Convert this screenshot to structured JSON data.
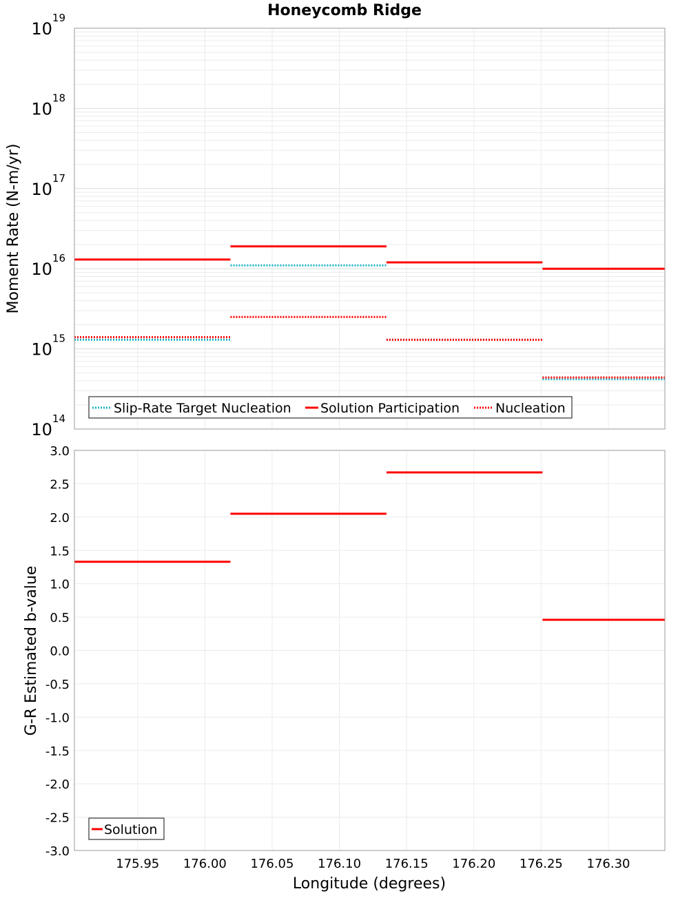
{
  "chart_data": [
    {
      "type": "line",
      "title": "Honeycomb Ridge",
      "ylabel": "Moment Rate (N-m/yr)",
      "xlabel": "",
      "yscale": "log",
      "ylim": [
        100000000000000.0,
        1e+19
      ],
      "xlim": [
        175.903,
        176.342
      ],
      "xtick_labels": [],
      "ytick_labels": [
        {
          "base": "10",
          "exp": "14",
          "value": 100000000000000.0
        },
        {
          "base": "10",
          "exp": "15",
          "value": 1000000000000000.0
        },
        {
          "base": "10",
          "exp": "16",
          "value": 1e+16
        },
        {
          "base": "10",
          "exp": "17",
          "value": 1e+17
        },
        {
          "base": "10",
          "exp": "18",
          "value": 1e+18
        },
        {
          "base": "10",
          "exp": "19",
          "value": 1e+19
        }
      ],
      "grid": true,
      "legend": {
        "placement": "bottom-left"
      },
      "series": [
        {
          "name": "Slip-Rate Target Nucleation",
          "color": "#1fb3c4",
          "style": "dotted",
          "segments": [
            {
              "x0": 175.903,
              "x1": 176.019,
              "y": 1300000000000000.0
            },
            {
              "x0": 176.019,
              "x1": 176.135,
              "y": 1.1e+16
            },
            {
              "x0": 176.135,
              "x1": 176.251,
              "y": 1300000000000000.0
            },
            {
              "x0": 176.251,
              "x1": 176.342,
              "y": 420000000000000.0
            }
          ]
        },
        {
          "name": "Solution Participation",
          "color": "#ff0000",
          "style": "solid",
          "segments": [
            {
              "x0": 175.903,
              "x1": 176.019,
              "y": 1.3e+16
            },
            {
              "x0": 176.019,
              "x1": 176.135,
              "y": 1.9e+16
            },
            {
              "x0": 176.135,
              "x1": 176.251,
              "y": 1.2e+16
            },
            {
              "x0": 176.251,
              "x1": 176.342,
              "y": 1e+16
            }
          ]
        },
        {
          "name": "Nucleation",
          "color": "#ff0000",
          "style": "dotted",
          "segments": [
            {
              "x0": 175.903,
              "x1": 176.019,
              "y": 1400000000000000.0
            },
            {
              "x0": 176.019,
              "x1": 176.135,
              "y": 2500000000000000.0
            },
            {
              "x0": 176.135,
              "x1": 176.251,
              "y": 1300000000000000.0
            },
            {
              "x0": 176.251,
              "x1": 176.342,
              "y": 440000000000000.0
            }
          ]
        }
      ]
    },
    {
      "type": "line",
      "title": "",
      "ylabel": "G-R Estimated b-value",
      "xlabel": "Longitude (degrees)",
      "yscale": "linear",
      "ylim": [
        -3.0,
        3.0
      ],
      "xlim": [
        175.903,
        176.342
      ],
      "xtick_labels": [
        "175.95",
        "176.00",
        "176.05",
        "176.10",
        "176.15",
        "176.20",
        "176.25",
        "176.30"
      ],
      "xticks": [
        175.95,
        176.0,
        176.05,
        176.1,
        176.15,
        176.2,
        176.25,
        176.3
      ],
      "ytick_labels": [
        "3.0",
        "2.5",
        "2.0",
        "1.5",
        "1.0",
        "0.5",
        "0.0",
        "-0.5",
        "-1.0",
        "-1.5",
        "-2.0",
        "-2.5",
        "-3.0"
      ],
      "yticks": [
        3.0,
        2.5,
        2.0,
        1.5,
        1.0,
        0.5,
        0.0,
        -0.5,
        -1.0,
        -1.5,
        -2.0,
        -2.5,
        -3.0
      ],
      "grid": true,
      "legend": {
        "placement": "bottom-left"
      },
      "series": [
        {
          "name": "Solution",
          "color": "#ff0000",
          "style": "solid",
          "segments": [
            {
              "x0": 175.903,
              "x1": 176.019,
              "y": 1.33
            },
            {
              "x0": 176.019,
              "x1": 176.135,
              "y": 2.05
            },
            {
              "x0": 176.135,
              "x1": 176.251,
              "y": 2.67
            },
            {
              "x0": 176.251,
              "x1": 176.342,
              "y": 0.46
            }
          ]
        }
      ]
    }
  ]
}
